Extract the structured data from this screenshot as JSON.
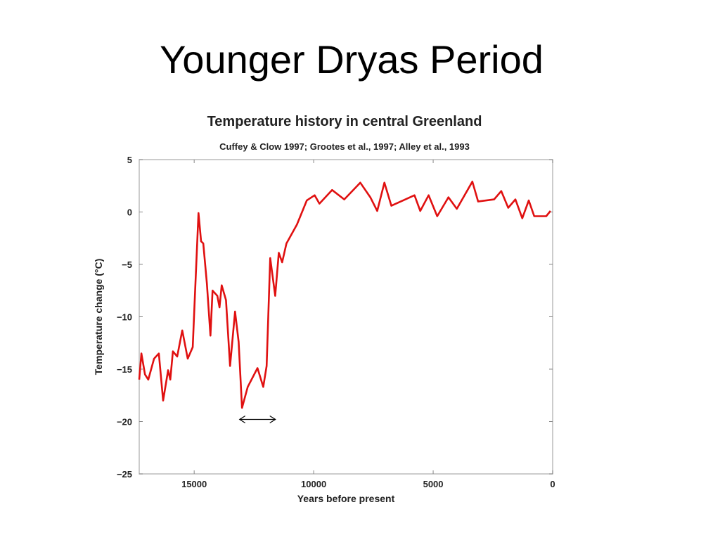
{
  "slide": {
    "title": "Younger Dryas Period"
  },
  "chart_data": {
    "type": "line",
    "title": "Temperature history in central Greenland",
    "subtitle": "Cuffey & Clow 1997; Grootes et al., 1997; Alley et al., 1993",
    "xlabel": "Years before present",
    "ylabel": "Temperature change (°C)",
    "xlim": [
      17300,
      0
    ],
    "ylim": [
      -25,
      5
    ],
    "xticks": [
      15000,
      10000,
      5000,
      0
    ],
    "yticks": [
      5,
      0,
      -5,
      -10,
      -15,
      -20,
      -25
    ],
    "grid": false,
    "line_color": "#e01010",
    "series": [
      {
        "name": "Temperature change",
        "x": [
          17300,
          17210,
          17060,
          16920,
          16680,
          16480,
          16300,
          16090,
          16000,
          15890,
          15710,
          15500,
          15270,
          15060,
          14970,
          14820,
          14710,
          14620,
          14470,
          14320,
          14230,
          14030,
          13940,
          13850,
          13670,
          13500,
          13290,
          13140,
          13000,
          12760,
          12350,
          12110,
          11970,
          11820,
          11610,
          11460,
          11320,
          11140,
          10700,
          10290,
          9960,
          9760,
          9230,
          8720,
          8050,
          7630,
          7340,
          7040,
          6750,
          6160,
          5780,
          5540,
          5190,
          4830,
          4360,
          4010,
          3360,
          3120,
          2450,
          2150,
          1860,
          1560,
          1270,
          1000,
          770,
          270,
          90
        ],
        "y": [
          -16,
          -13.5,
          -15.5,
          -16,
          -14,
          -13.5,
          -18,
          -15.1,
          -16,
          -13.3,
          -13.8,
          -11.3,
          -14,
          -12.9,
          -8,
          -0.1,
          -2.8,
          -3,
          -6.8,
          -11.8,
          -7.5,
          -8,
          -9.1,
          -7,
          -8.4,
          -14.7,
          -9.5,
          -12.4,
          -18.7,
          -16.7,
          -14.9,
          -16.7,
          -14.7,
          -4.4,
          -8,
          -3.9,
          -4.8,
          -3,
          -1.2,
          1.1,
          1.6,
          0.8,
          2.1,
          1.2,
          2.8,
          1.4,
          0.1,
          2.8,
          0.6,
          1.2,
          1.6,
          0.1,
          1.6,
          -0.4,
          1.4,
          0.3,
          2.9,
          1,
          1.2,
          2,
          0.4,
          1.2,
          -0.6,
          1.1,
          -0.4,
          -0.4,
          0.1
        ]
      }
    ],
    "annotations": [
      {
        "type": "double-arrow",
        "x": [
          13100,
          11600
        ],
        "y": -19.8
      }
    ]
  }
}
